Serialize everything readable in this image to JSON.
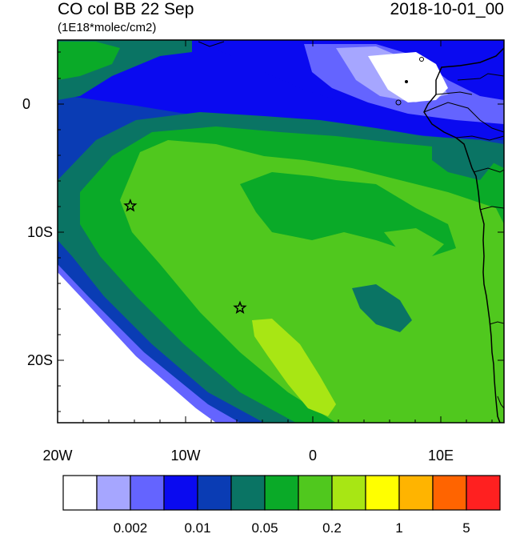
{
  "title": {
    "left": "CO col BB 22 Sep",
    "units": "(1E18*molec/cm2)",
    "right": "2018-10-01_00"
  },
  "axes": {
    "lat_labels": [
      "0",
      "10S",
      "20S"
    ],
    "lon_labels": [
      "20W",
      "10W",
      "0",
      "10E"
    ]
  },
  "map": {
    "lon_range": [
      -20,
      15
    ],
    "lat_range": [
      -25,
      5
    ],
    "markers": [
      {
        "name": "star-marker-1",
        "lon": -14.3,
        "lat": -8
      },
      {
        "name": "star-marker-2",
        "lon": -5.7,
        "lat": -16
      }
    ]
  },
  "colorbar": {
    "colors": [
      "#ffffff",
      "#a6a6ff",
      "#6464ff",
      "#0a0af0",
      "#0a3cb4",
      "#0a7464",
      "#0aaa28",
      "#50c81e",
      "#a8e614",
      "#ffff00",
      "#ffb400",
      "#ff6400",
      "#ff2020"
    ],
    "labels": [
      "0.002",
      "0.01",
      "0.05",
      "0.2",
      "1",
      "5"
    ]
  }
}
